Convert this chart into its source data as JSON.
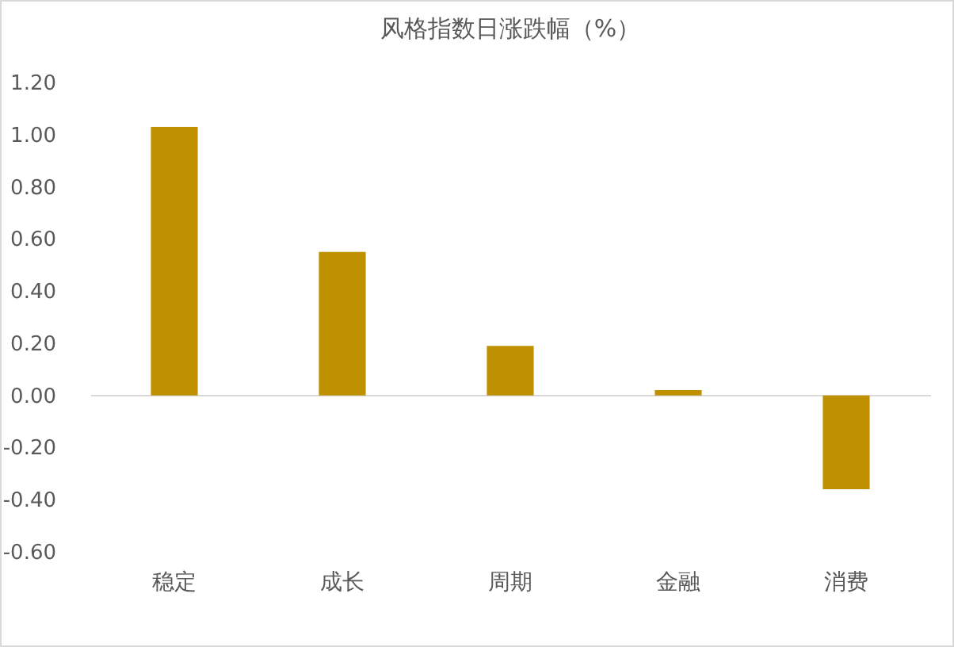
{
  "chart_data": {
    "type": "bar",
    "title": "风格指数日涨跌幅（%）",
    "categories": [
      "稳定",
      "成长",
      "周期",
      "金融",
      "消费"
    ],
    "values": [
      1.03,
      0.55,
      0.19,
      0.02,
      -0.36
    ],
    "color": "#bf9000",
    "ylim": [
      -0.6,
      1.2
    ],
    "yticks": [
      {
        "value": -0.6,
        "label": "-0.60"
      },
      {
        "value": -0.4,
        "label": "-0.40"
      },
      {
        "value": -0.2,
        "label": "-0.20"
      },
      {
        "value": 0,
        "label": "0.00"
      },
      {
        "value": 0.2,
        "label": "0.20"
      },
      {
        "value": 0.4,
        "label": "0.40"
      },
      {
        "value": 0.6,
        "label": "0.60"
      },
      {
        "value": 0.8,
        "label": "0.80"
      },
      {
        "value": 1,
        "label": "1.00"
      },
      {
        "value": 1.2,
        "label": "1.20"
      }
    ]
  }
}
